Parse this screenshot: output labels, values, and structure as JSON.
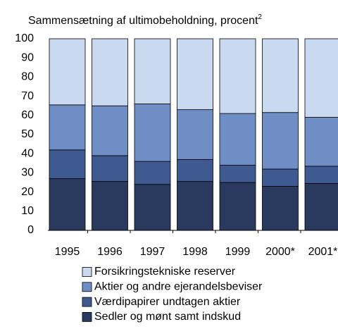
{
  "chart_data": {
    "type": "stacked_bar",
    "title": "Sammensætning af ultimobeholdning, procent",
    "title_note": "2",
    "categories": [
      "1995",
      "1996",
      "1997",
      "1998",
      "1999",
      "2000*",
      "2001*"
    ],
    "series": [
      {
        "name": "Sedler og mønt samt indskud",
        "color": "#2a3a5e",
        "values": [
          27,
          25.5,
          24,
          25.5,
          25,
          23,
          24.5
        ]
      },
      {
        "name": "Værdipapirer undtagen aktier",
        "color": "#3f5a90",
        "values": [
          15,
          13.5,
          12,
          11.5,
          9,
          9,
          9
        ]
      },
      {
        "name": "Aktier og andre ejerandelsbeviser",
        "color": "#6f8ec6",
        "values": [
          23.5,
          26,
          30,
          26,
          27,
          29.5,
          25.5
        ]
      },
      {
        "name": "Forsikringstekniske reserver",
        "color": "#c9d9ef",
        "values": [
          34.5,
          35,
          34,
          37,
          39,
          38.5,
          41
        ]
      }
    ],
    "ylim": [
      0,
      100
    ],
    "yticks": [
      0,
      10,
      20,
      30,
      40,
      50,
      60,
      70,
      80,
      90,
      100
    ]
  }
}
